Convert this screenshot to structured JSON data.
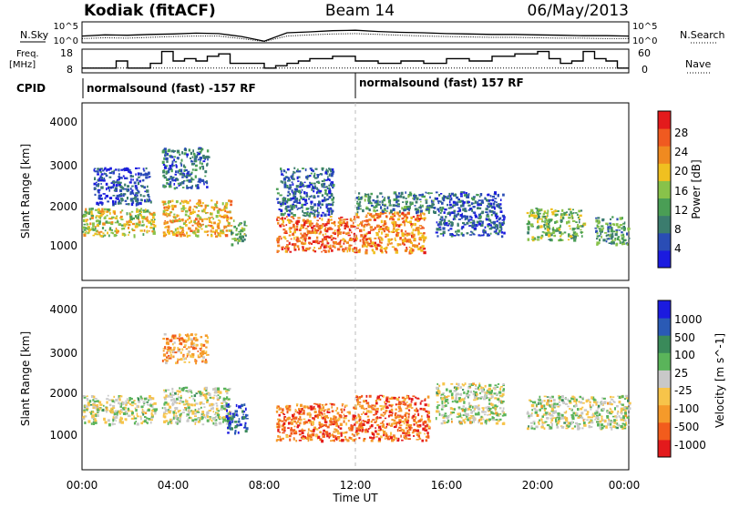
{
  "header": {
    "left_title": "Kodiak (fitACF)",
    "center_title": "Beam 14",
    "right_title": "06/May/2013"
  },
  "strip_labels": {
    "nsky": "N.Sky",
    "freq_top": "Freq.",
    "freq_unit": "[MHz]",
    "cpid": "CPID",
    "nsearch": "N.Search",
    "nave": "Nave"
  },
  "cpid_segments": [
    {
      "label": "normalsound (fast) -157 RF",
      "start_hour": 0
    },
    {
      "label": "normalsound (fast) 157 RF",
      "start_hour": 12
    }
  ],
  "chart_data": [
    {
      "type": "line",
      "name": "noise-strip",
      "x_unit": "hours UT",
      "left_ticks": [
        "10^5",
        "10^0"
      ],
      "right_ticks": [
        "10^5",
        "10^0"
      ],
      "series": [
        {
          "name": "N.Sky",
          "x": [
            0,
            1,
            2,
            3,
            4,
            5,
            6,
            7,
            8,
            9,
            10,
            11,
            12,
            13,
            14,
            15,
            16,
            17,
            18,
            19,
            20,
            21,
            22,
            23,
            24
          ],
          "y": [
            1.6,
            1.9,
            1.8,
            2.0,
            2.1,
            2.3,
            2.2,
            1.5,
            0.4,
            2.4,
            2.6,
            2.9,
            3.0,
            2.7,
            2.5,
            2.4,
            2.2,
            2.1,
            2.0,
            2.0,
            1.9,
            1.8,
            1.7,
            1.7,
            1.6
          ]
        },
        {
          "name": "N.Search",
          "x": [
            0,
            1,
            2,
            3,
            4,
            5,
            6,
            7,
            8,
            9,
            10,
            11,
            12,
            13,
            14,
            15,
            16,
            17,
            18,
            19,
            20,
            21,
            22,
            23,
            24
          ],
          "y": [
            1.0,
            1.2,
            1.1,
            1.3,
            1.5,
            1.6,
            1.6,
            1.0,
            0.3,
            1.6,
            1.9,
            2.1,
            2.2,
            2.0,
            1.8,
            1.6,
            1.5,
            1.4,
            1.3,
            1.3,
            1.2,
            1.1,
            1.1,
            1.0,
            1.0
          ]
        }
      ]
    },
    {
      "type": "line",
      "name": "freq-strip",
      "left_ticks": [
        "18",
        "8"
      ],
      "right_ticks": [
        "60",
        "0"
      ],
      "series": [
        {
          "name": "Freq.",
          "x": [
            0,
            1,
            1.5,
            2,
            3,
            3.5,
            4,
            4.5,
            5,
            5.5,
            6,
            6.5,
            7,
            8,
            8.5,
            9,
            9.5,
            10,
            11,
            12,
            13,
            14,
            15,
            16,
            17,
            18,
            19,
            20,
            20.5,
            21,
            21.5,
            22,
            22.5,
            23,
            23.5,
            24
          ],
          "y": [
            10,
            10,
            13,
            10,
            12,
            17,
            13,
            14,
            13,
            15,
            16,
            12,
            12,
            10,
            11,
            12,
            13,
            14,
            15,
            13,
            12,
            13,
            12,
            14,
            13,
            15,
            16,
            17,
            14,
            12,
            13,
            17,
            14,
            13,
            10,
            10
          ]
        },
        {
          "name": "Nave",
          "x": [
            0,
            24
          ],
          "y": [
            10,
            10
          ]
        }
      ]
    },
    {
      "type": "heatmap",
      "name": "power-panel",
      "ylabel": "Slant Range [km]",
      "y_ticks": [
        1000,
        2000,
        3000,
        4000
      ],
      "ylim": [
        180,
        4600
      ],
      "colorbar_label": "Power [dB]",
      "colorbar_ticks": [
        4,
        8,
        12,
        16,
        20,
        24,
        28
      ],
      "colorbar_colors": [
        "#1b1bdf",
        "#2a4db5",
        "#3b7c6e",
        "#4a9e55",
        "#88c24a",
        "#f0c020",
        "#f08a20",
        "#f05a20",
        "#e31a1c"
      ],
      "echo_regions": [
        {
          "x0": 0,
          "x1": 3.2,
          "r0": 1300,
          "r1": 2000,
          "level": 0.55
        },
        {
          "x0": 0.5,
          "x1": 3,
          "r0": 2100,
          "r1": 3000,
          "level": 0.15
        },
        {
          "x0": 3.5,
          "x1": 6.5,
          "r0": 1300,
          "r1": 2200,
          "level": 0.65
        },
        {
          "x0": 3.5,
          "x1": 5.5,
          "r0": 2500,
          "r1": 3500,
          "level": 0.25
        },
        {
          "x0": 6.5,
          "x1": 7.2,
          "r0": 1100,
          "r1": 1700,
          "level": 0.4
        },
        {
          "x0": 8.5,
          "x1": 12,
          "r0": 900,
          "r1": 1800,
          "level": 0.8
        },
        {
          "x0": 8.5,
          "x1": 11,
          "r0": 1800,
          "r1": 3000,
          "level": 0.2
        },
        {
          "x0": 12,
          "x1": 15,
          "r0": 900,
          "r1": 1900,
          "level": 0.75
        },
        {
          "x0": 12,
          "x1": 15.5,
          "r0": 1900,
          "r1": 2400,
          "level": 0.3
        },
        {
          "x0": 15.5,
          "x1": 18.5,
          "r0": 1300,
          "r1": 2400,
          "level": 0.2
        },
        {
          "x0": 19.5,
          "x1": 22,
          "r0": 1200,
          "r1": 2000,
          "level": 0.45
        },
        {
          "x0": 22.5,
          "x1": 24,
          "r0": 1100,
          "r1": 1800,
          "level": 0.35
        }
      ]
    },
    {
      "type": "heatmap",
      "name": "velocity-panel",
      "xlabel": "Time UT",
      "ylabel": "Slant Range [km]",
      "x_ticks": [
        "00:00",
        "04:00",
        "08:00",
        "12:00",
        "16:00",
        "20:00",
        "00:00"
      ],
      "y_ticks": [
        1000,
        2000,
        3000,
        4000
      ],
      "ylim": [
        180,
        4600
      ],
      "colorbar_label": "Velocity [m s^-1]",
      "colorbar_ticks": [
        -1000,
        -500,
        -100,
        -25,
        25,
        100,
        500,
        1000
      ],
      "colorbar_colors": [
        "#e31a1c",
        "#f25c1c",
        "#f59a2a",
        "#f7c44a",
        "#c8c8c8",
        "#5ab45a",
        "#3a8a5a",
        "#2a5ab5",
        "#1b1bdf"
      ],
      "echo_regions": [
        {
          "x0": 0,
          "x1": 3.2,
          "r0": 1300,
          "r1": 2000,
          "level": 0.5
        },
        {
          "x0": 3.5,
          "x1": 6.5,
          "r0": 1300,
          "r1": 2200,
          "level": 0.5
        },
        {
          "x0": 3.5,
          "x1": 5.5,
          "r0": 2800,
          "r1": 3500,
          "level": 0.3
        },
        {
          "x0": 6.3,
          "x1": 7.2,
          "r0": 1100,
          "r1": 1800,
          "level": 0.85
        },
        {
          "x0": 8.5,
          "x1": 12,
          "r0": 900,
          "r1": 1800,
          "level": 0.2
        },
        {
          "x0": 12,
          "x1": 15.2,
          "r0": 900,
          "r1": 2000,
          "level": 0.2
        },
        {
          "x0": 15.5,
          "x1": 18.5,
          "r0": 1300,
          "r1": 2300,
          "level": 0.5
        },
        {
          "x0": 19.5,
          "x1": 24,
          "r0": 1200,
          "r1": 2000,
          "level": 0.5
        }
      ]
    }
  ]
}
